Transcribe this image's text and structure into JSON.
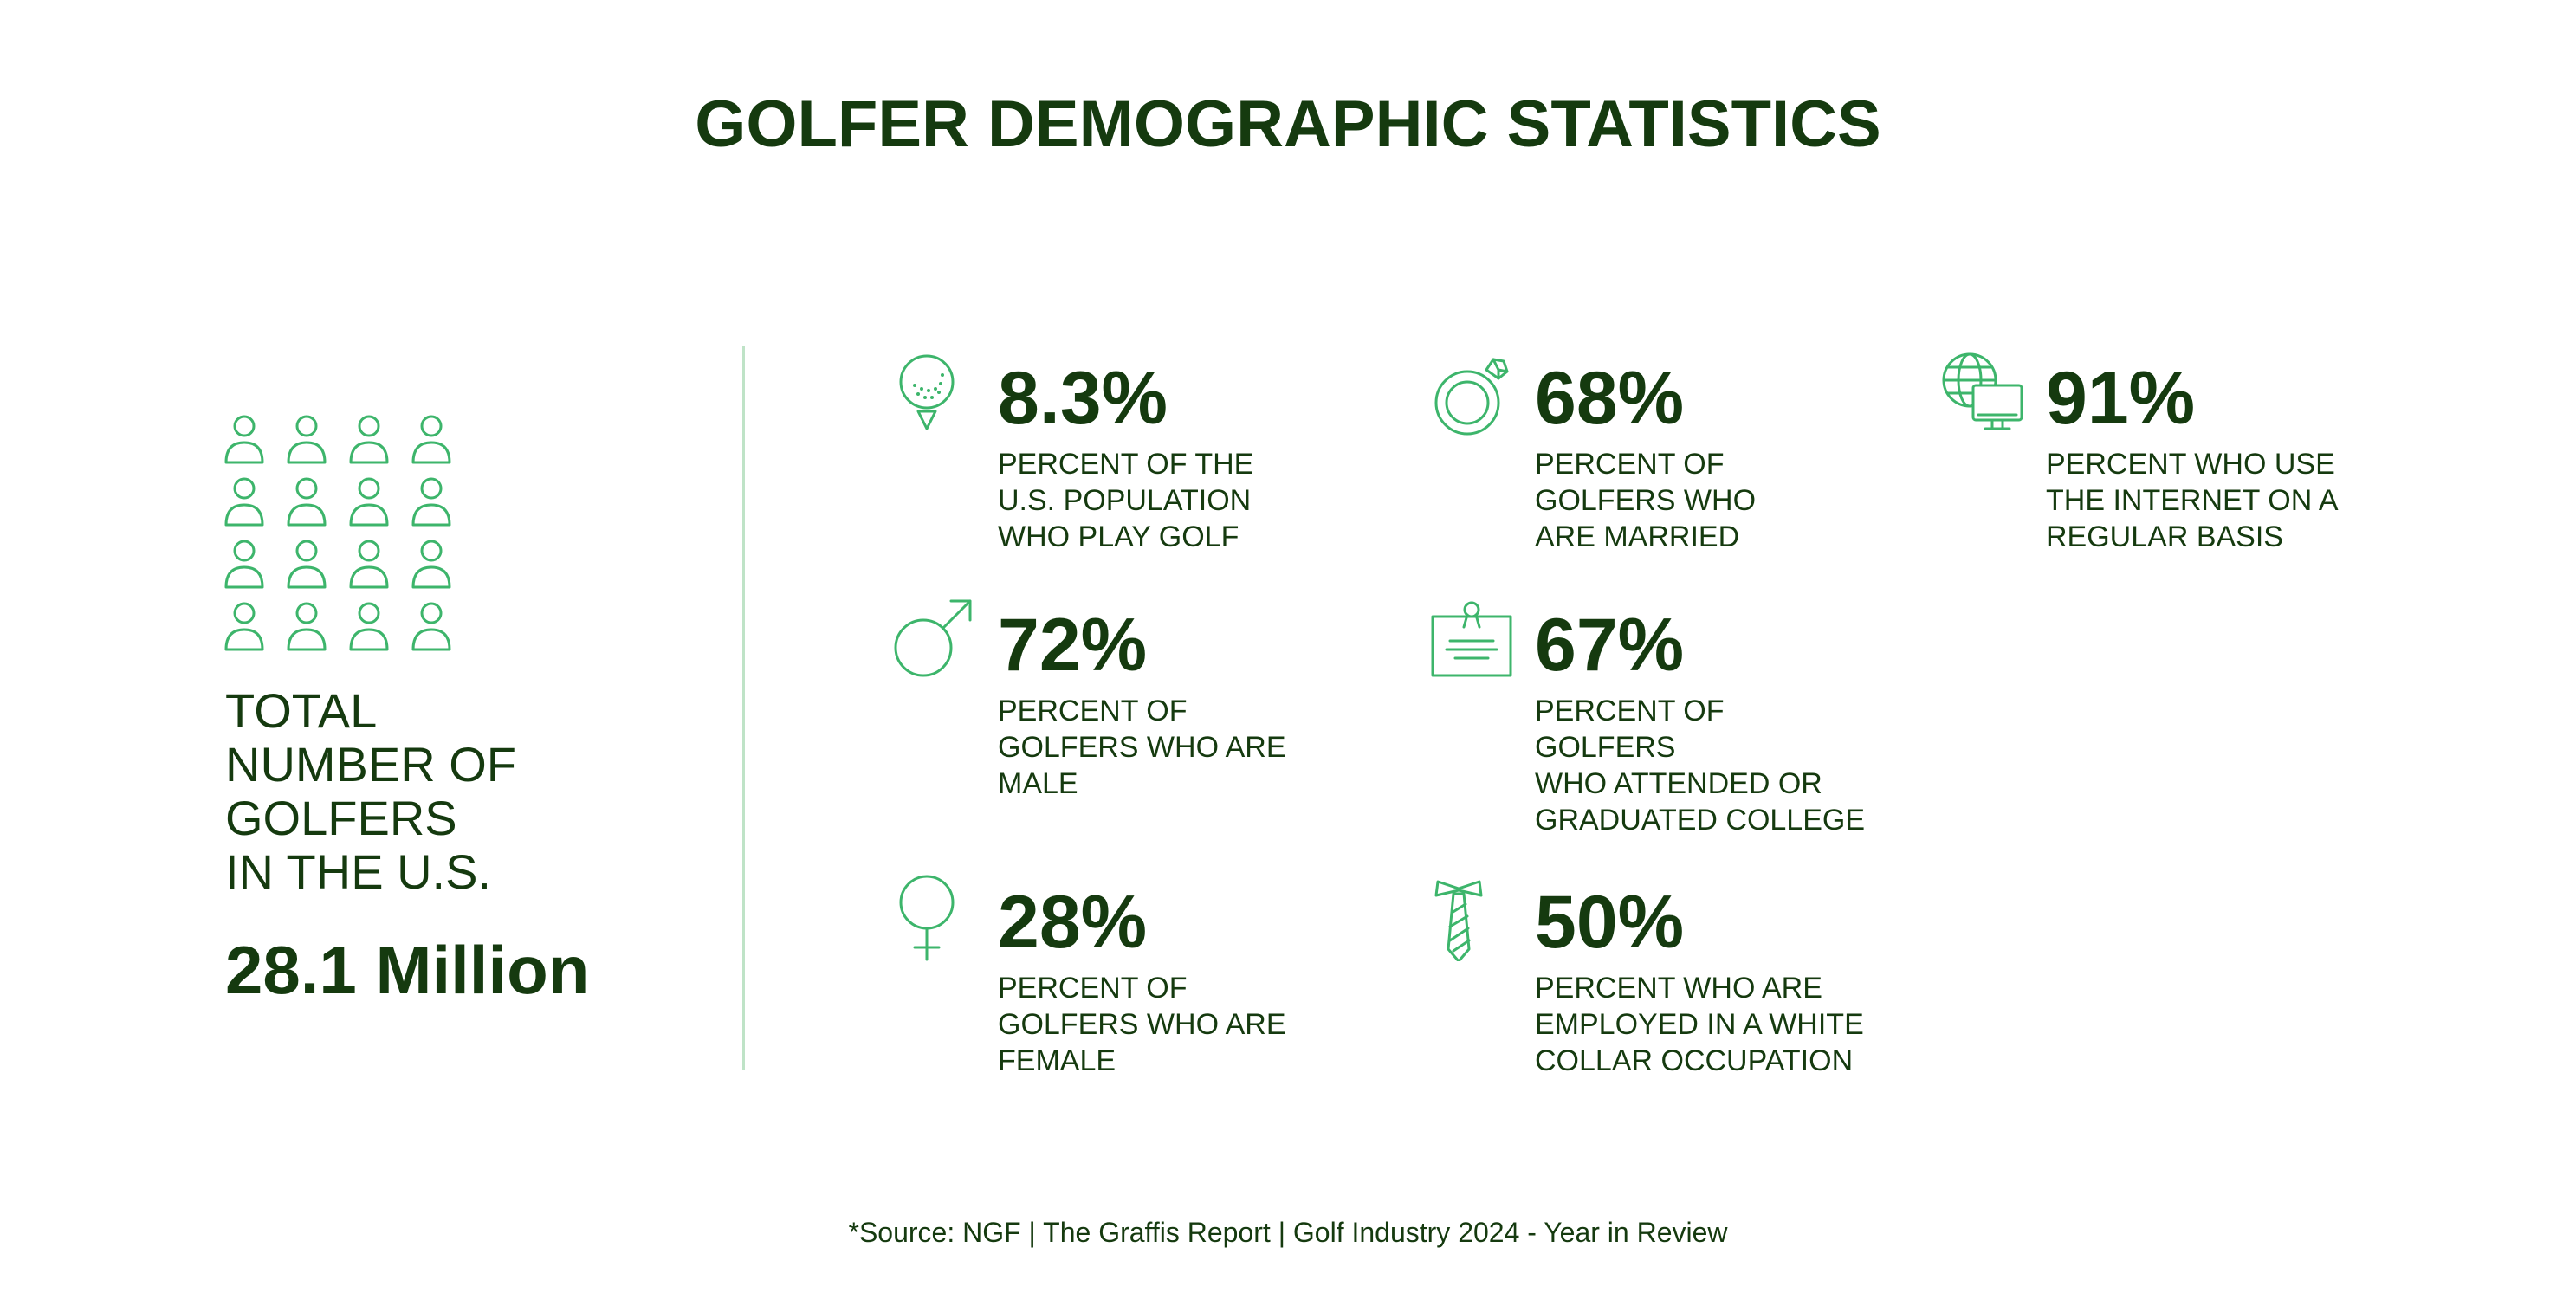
{
  "title": "GOLFER DEMOGRAPHIC STATISTICS",
  "colors": {
    "text": "#153a0f",
    "icon": "#3db56b",
    "divider": "#bfe3c7"
  },
  "total": {
    "label_lines": [
      "TOTAL",
      "NUMBER OF",
      "GOLFERS",
      "IN THE U.S."
    ],
    "value": "28.1 Million",
    "icon": "people-grid-icon"
  },
  "stats": [
    {
      "id": "golf",
      "icon": "golf-ball-on-tee-icon",
      "value": "8.3%",
      "lines": [
        "PERCENT OF THE",
        "U.S. POPULATION",
        "WHO PLAY GOLF"
      ]
    },
    {
      "id": "married",
      "icon": "diamond-ring-icon",
      "value": "68%",
      "lines": [
        "PERCENT OF",
        "GOLFERS WHO",
        "ARE MARRIED"
      ]
    },
    {
      "id": "internet",
      "icon": "globe-computer-icon",
      "value": "91%",
      "lines": [
        "PERCENT WHO USE",
        "THE INTERNET ON A",
        "REGULAR BASIS"
      ]
    },
    {
      "id": "male",
      "icon": "male-symbol-icon",
      "value": "72%",
      "lines": [
        "PERCENT OF",
        "GOLFERS WHO ARE",
        "MALE"
      ]
    },
    {
      "id": "college",
      "icon": "diploma-certificate-icon",
      "value": "67%",
      "lines": [
        "PERCENT OF",
        "GOLFERS",
        "WHO ATTENDED OR",
        "GRADUATED COLLEGE"
      ]
    },
    {
      "id": "female",
      "icon": "female-symbol-icon",
      "value": "28%",
      "lines": [
        "PERCENT OF",
        "GOLFERS WHO ARE",
        "FEMALE"
      ]
    },
    {
      "id": "whitecollar",
      "icon": "necktie-icon",
      "value": "50%",
      "lines": [
        "PERCENT WHO ARE",
        "EMPLOYED IN A WHITE",
        "COLLAR OCCUPATION"
      ]
    }
  ],
  "source": "*Source: NGF | The Graffis Report | Golf Industry 2024 - Year in Review"
}
